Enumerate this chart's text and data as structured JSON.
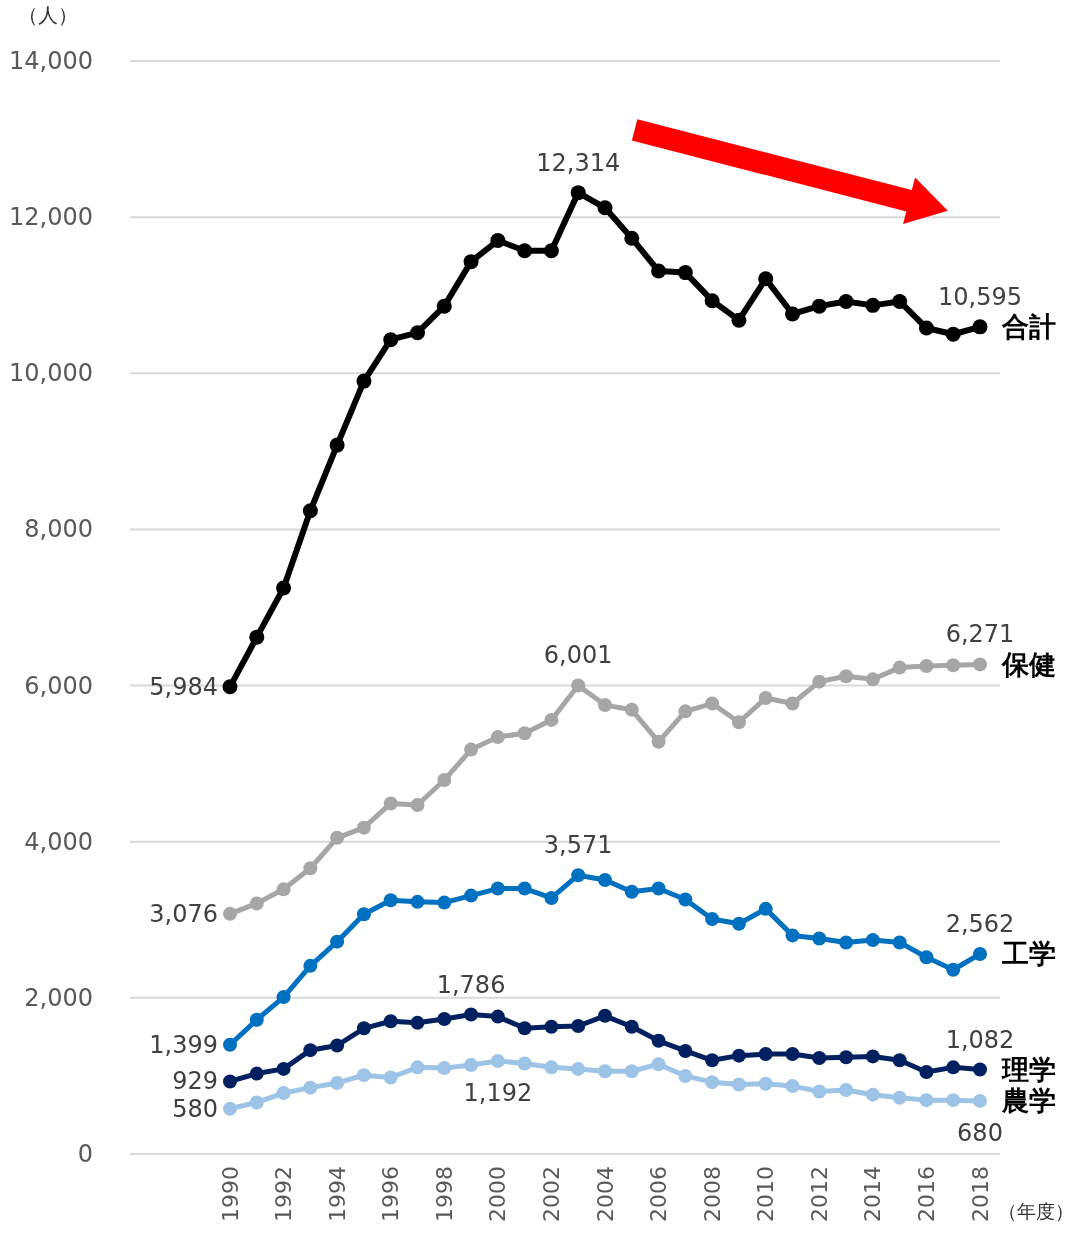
{
  "chart_data": {
    "type": "line",
    "ylabel": "（人）",
    "xlabel": "（年度）",
    "categories": [
      "1990",
      null,
      "1992",
      null,
      "1994",
      null,
      "1996",
      null,
      "1998",
      null,
      "2000",
      null,
      "2002",
      null,
      "2004",
      null,
      "2006",
      null,
      "2008",
      null,
      "2010",
      null,
      "2012",
      null,
      "2014",
      null,
      "2016",
      null,
      "2018"
    ],
    "ylim": [
      0,
      14000
    ],
    "yticks": [
      0,
      {
        "value": 2000,
        "label": "2,000"
      },
      {
        "value": 4000,
        "label": "4,000"
      },
      {
        "value": 6000,
        "label": "6,000"
      },
      {
        "value": 8000,
        "label": "8,000"
      },
      {
        "value": 10000,
        "label": "10,000"
      },
      {
        "value": 12000,
        "label": "12,000"
      },
      {
        "value": 14000,
        "label": "14,000"
      }
    ],
    "grid": "y",
    "legend": false,
    "marker": "circle",
    "line_style": "solid",
    "series": [
      {
        "name": "合計",
        "color": "#000000",
        "values": [
          5984,
          6620,
          7250,
          8240,
          9080,
          9900,
          10430,
          10520,
          10860,
          11430,
          11700,
          11570,
          11570,
          12314,
          12120,
          11730,
          11310,
          11290,
          10930,
          10680,
          11210,
          10760,
          10860,
          10920,
          10870,
          10920,
          10580,
          10500,
          10595
        ],
        "value_labels": [
          "5,984",
          null,
          null,
          null,
          null,
          null,
          null,
          null,
          null,
          null,
          null,
          null,
          null,
          "12,314",
          null,
          null,
          null,
          null,
          null,
          null,
          null,
          null,
          null,
          null,
          null,
          null,
          null,
          null,
          "10,595"
        ]
      },
      {
        "name": "保健",
        "color": "#a6a6a6",
        "values": [
          3076,
          3210,
          3390,
          3660,
          4050,
          4180,
          4490,
          4470,
          4790,
          5180,
          5340,
          5390,
          5560,
          6001,
          5750,
          5690,
          5280,
          5670,
          5770,
          5530,
          5840,
          5770,
          6050,
          6120,
          6080,
          6230,
          6250,
          6260,
          6271
        ],
        "value_labels": [
          "3,076",
          null,
          null,
          null,
          null,
          null,
          null,
          null,
          null,
          null,
          null,
          null,
          null,
          "6,001",
          null,
          null,
          null,
          null,
          null,
          null,
          null,
          null,
          null,
          null,
          null,
          null,
          null,
          null,
          "6,271"
        ]
      },
      {
        "name": "工学",
        "color": "#0070c0",
        "values": [
          1399,
          1720,
          2010,
          2410,
          2720,
          3070,
          3250,
          3230,
          3220,
          3310,
          3400,
          3400,
          3280,
          3571,
          3510,
          3360,
          3400,
          3260,
          3010,
          2950,
          3140,
          2800,
          2760,
          2710,
          2740,
          2710,
          2520,
          2360,
          2562
        ],
        "value_labels": [
          "1,399",
          null,
          null,
          null,
          null,
          null,
          null,
          null,
          null,
          null,
          null,
          null,
          null,
          "3,571",
          null,
          null,
          null,
          null,
          null,
          null,
          null,
          null,
          null,
          null,
          null,
          null,
          null,
          null,
          "2,562"
        ]
      },
      {
        "name": "理学",
        "color": "#002060",
        "values": [
          929,
          1030,
          1090,
          1330,
          1390,
          1610,
          1700,
          1680,
          1730,
          1786,
          1760,
          1610,
          1630,
          1640,
          1770,
          1630,
          1450,
          1320,
          1200,
          1260,
          1280,
          1280,
          1230,
          1240,
          1250,
          1200,
          1050,
          1110,
          1082
        ],
        "value_labels": [
          "929",
          null,
          null,
          null,
          null,
          null,
          null,
          null,
          null,
          "1,786",
          null,
          null,
          null,
          null,
          null,
          null,
          null,
          null,
          null,
          null,
          null,
          null,
          null,
          null,
          null,
          null,
          null,
          null,
          "1,082"
        ]
      },
      {
        "name": "農学",
        "color": "#9dc3e6",
        "values": [
          580,
          660,
          780,
          850,
          910,
          1010,
          980,
          1110,
          1100,
          1140,
          1192,
          1160,
          1110,
          1090,
          1060,
          1060,
          1150,
          1000,
          920,
          890,
          900,
          870,
          800,
          820,
          760,
          720,
          690,
          690,
          680
        ],
        "value_labels": [
          "580",
          null,
          null,
          null,
          null,
          null,
          null,
          null,
          null,
          null,
          "1,192",
          null,
          null,
          null,
          null,
          null,
          null,
          null,
          null,
          null,
          null,
          null,
          null,
          null,
          null,
          null,
          null,
          null,
          "680"
        ]
      }
    ]
  }
}
